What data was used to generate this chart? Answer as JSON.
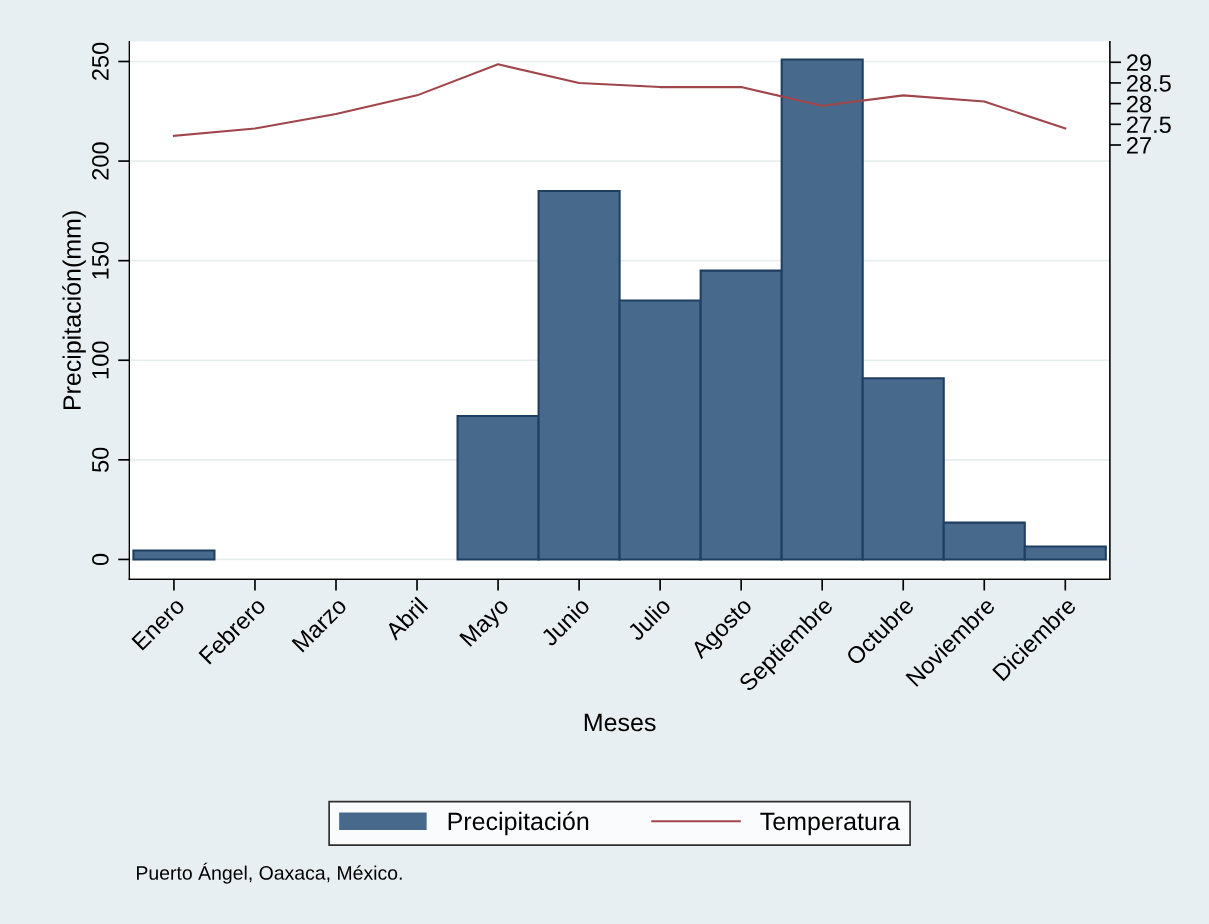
{
  "chart_data": {
    "type": "bar",
    "xlabel": "Meses",
    "ylabel": "Precipitación(mm)",
    "categories": [
      "Enero",
      "Febrero",
      "Marzo",
      "Abril",
      "Mayo",
      "Junio",
      "Julio",
      "Agosto",
      "Septiembre",
      "Octubre",
      "Noviembre",
      "Diciembre"
    ],
    "series": [
      {
        "name": "Precipitación",
        "color": "#476a8c",
        "values": [
          4.5,
          0,
          0,
          0,
          72,
          185,
          130,
          145,
          251,
          91,
          18.5,
          6.5
        ]
      },
      {
        "name": "Temperatura",
        "type": "line",
        "axis": "y2",
        "color": "#a0464b",
        "values": [
          27.22,
          27.4,
          27.75,
          28.2,
          28.95,
          28.5,
          28.4,
          28.4,
          27.95,
          28.2,
          28.05,
          27.4
        ]
      }
    ],
    "ylim": [
      -10,
      260
    ],
    "yticks": [
      0,
      50,
      100,
      150,
      200,
      250
    ],
    "y2lim": [
      16.5,
      29.5
    ],
    "y2ticks": [
      27,
      27.5,
      28,
      28.5,
      29
    ],
    "grid": "y",
    "legend": "bottom",
    "line_style": "solid",
    "marker": "none",
    "annotations": [
      "Puerto Ángel, Oaxaca, México."
    ]
  }
}
